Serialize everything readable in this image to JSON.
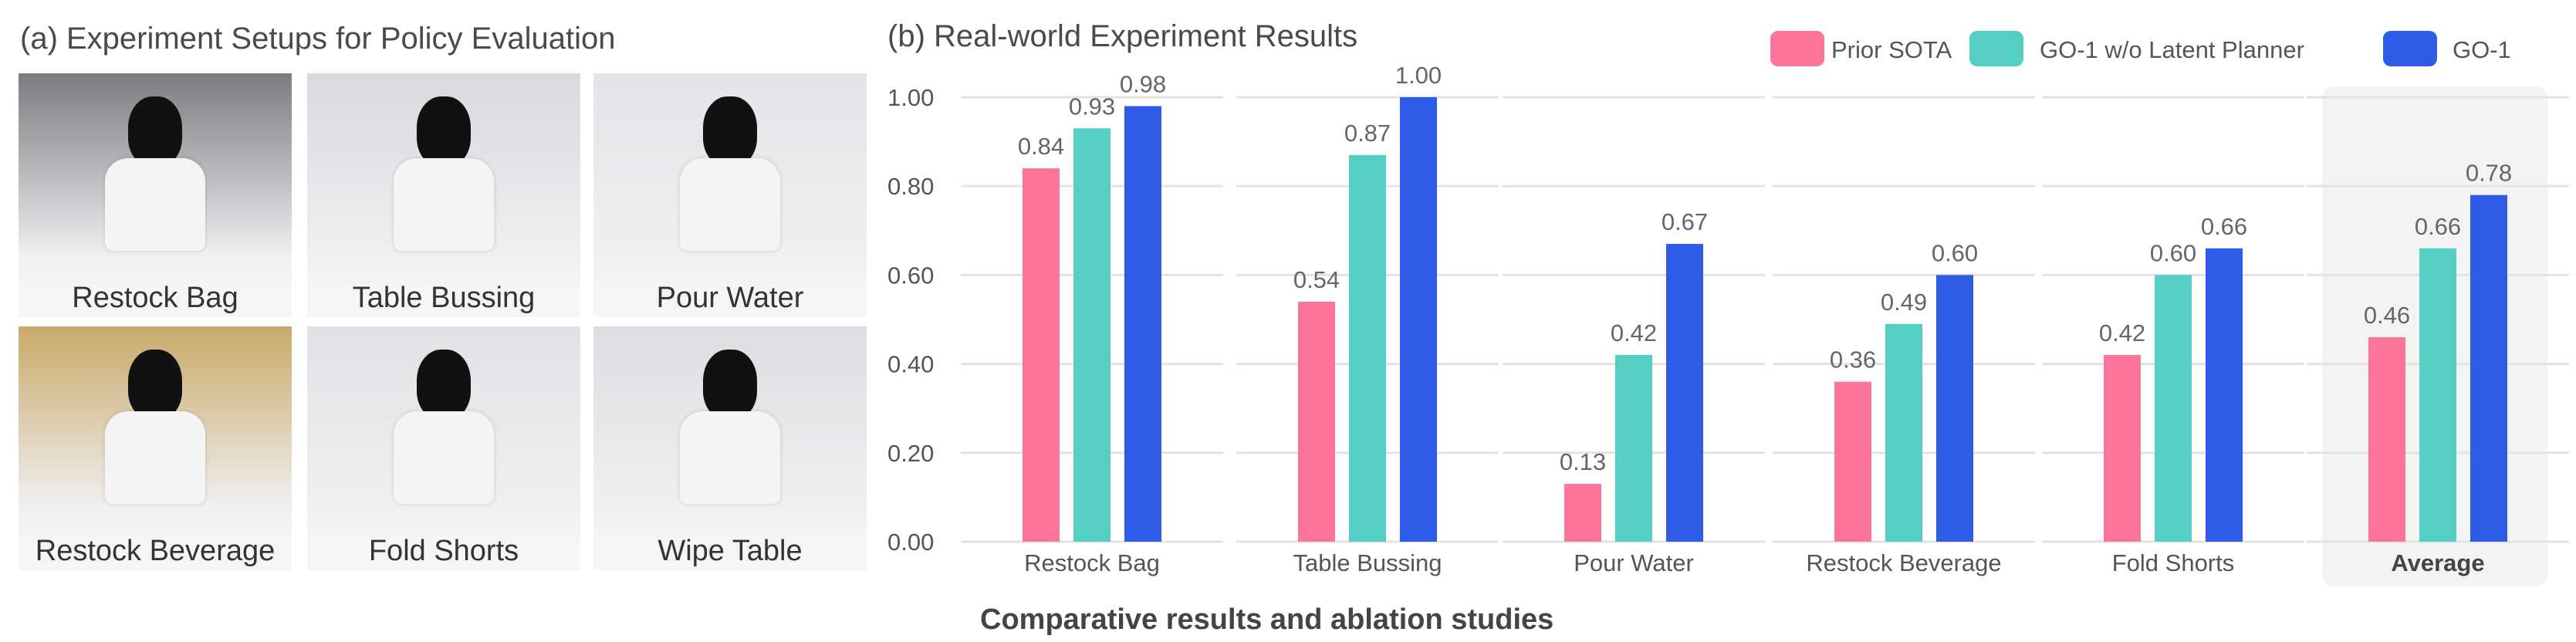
{
  "panel_a": {
    "title": "(a) Experiment Setups for Policy Evaluation",
    "photos": [
      {
        "label": "Restock Bag",
        "tone": "#7a7a80"
      },
      {
        "label": "Table Bussing",
        "tone": "#d9d9de"
      },
      {
        "label": "Pour Water",
        "tone": "#e4e4e8"
      },
      {
        "label": "Restock Beverage",
        "tone": "#c9a96a"
      },
      {
        "label": "Fold Shorts",
        "tone": "#e2e2e6"
      },
      {
        "label": "Wipe Table",
        "tone": "#dedee2"
      }
    ]
  },
  "caption": "Comparative results and ablation studies",
  "chart_data": {
    "type": "bar",
    "title": "(b) Real-world Experiment Results",
    "categories": [
      "Restock Bag",
      "Table Bussing",
      "Pour Water",
      "Restock Beverage",
      "Fold Shorts",
      "Average"
    ],
    "series": [
      {
        "name": "Prior SOTA",
        "color": "#fd7499",
        "values": [
          0.84,
          0.54,
          0.13,
          0.36,
          0.42,
          0.46
        ],
        "labels": [
          "0.84",
          "0.54",
          "0.13",
          "0.36",
          "0.42",
          "0.46"
        ]
      },
      {
        "name": "GO-1 w/o Latent Planner",
        "color": "#55cfc4",
        "values": [
          0.93,
          0.87,
          0.42,
          0.49,
          0.6,
          0.66
        ],
        "labels": [
          "0.93",
          "0.87",
          "0.42",
          "0.49",
          "0.60",
          "0.66"
        ]
      },
      {
        "name": "GO-1",
        "color": "#2f5ce6",
        "values": [
          0.98,
          1.0,
          0.67,
          0.6,
          0.66,
          0.78
        ],
        "labels": [
          "0.98",
          "1.00",
          "0.67",
          "0.60",
          "0.66",
          "0.78"
        ]
      }
    ],
    "yticks": [
      "0.00",
      "0.20",
      "0.40",
      "0.60",
      "0.80",
      "1.00"
    ],
    "ylim": [
      0,
      1.0
    ],
    "grid": true,
    "legend_position": "top-right",
    "highlighted_category": "Average"
  }
}
